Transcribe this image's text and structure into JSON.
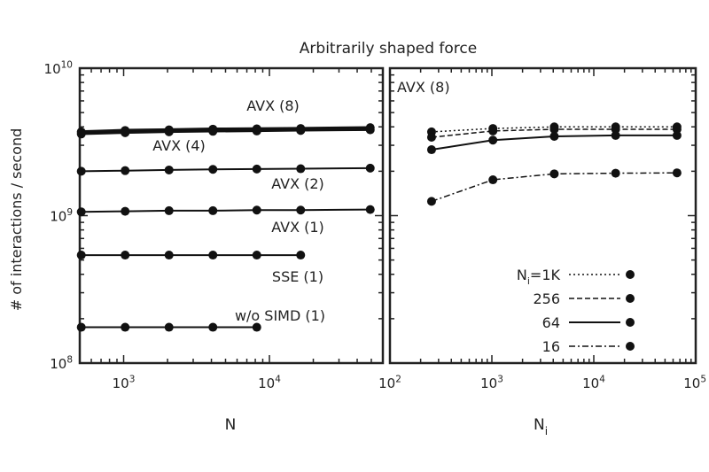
{
  "chart_data": [
    {
      "type": "line",
      "title": "Arbitrarily shaped force",
      "xlabel": "N",
      "ylabel": "# of interactions / second",
      "x_scale": "log",
      "y_scale": "log",
      "xlim": [
        500,
        60000
      ],
      "ylim": [
        100000000,
        10000000000
      ],
      "x_ticks": [
        {
          "value": 1000,
          "label_base": "10",
          "label_exp": "3"
        },
        {
          "value": 10000,
          "label_base": "10",
          "label_exp": "4"
        }
      ],
      "y_ticks": [
        {
          "value": 100000000,
          "label_base": "10",
          "label_exp": "8"
        },
        {
          "value": 1000000000,
          "label_base": "10",
          "label_exp": "9"
        },
        {
          "value": 10000000000,
          "label_base": "10",
          "label_exp": "10"
        }
      ],
      "series": [
        {
          "name": "AVX (8)",
          "x": [
            512,
            1024,
            2048,
            4096,
            8192,
            16384,
            49152
          ],
          "y": [
            3700000000,
            3780000000,
            3820000000,
            3860000000,
            3880000000,
            3900000000,
            3950000000
          ]
        },
        {
          "name": "AVX (4)",
          "x": [
            512,
            1024,
            2048,
            4096,
            8192,
            16384,
            49152
          ],
          "y": [
            3580000000,
            3650000000,
            3700000000,
            3730000000,
            3750000000,
            3780000000,
            3820000000
          ]
        },
        {
          "name": "AVX (2)",
          "x": [
            512,
            1024,
            2048,
            4096,
            8192,
            16384,
            49152
          ],
          "y": [
            2000000000,
            2020000000,
            2040000000,
            2060000000,
            2070000000,
            2080000000,
            2100000000
          ]
        },
        {
          "name": "AVX (1)",
          "x": [
            512,
            1024,
            2048,
            4096,
            8192,
            16384,
            49152
          ],
          "y": [
            1060000000,
            1070000000,
            1080000000,
            1080000000,
            1090000000,
            1090000000,
            1100000000
          ]
        },
        {
          "name": "SSE (1)",
          "x": [
            512,
            1024,
            2048,
            4096,
            8192,
            16384
          ],
          "y": [
            540000000,
            540000000,
            540000000,
            540000000,
            540000000,
            540000000
          ]
        },
        {
          "name": "w/o SIMD (1)",
          "x": [
            512,
            1024,
            2048,
            4096,
            8192
          ],
          "y": [
            175000000,
            175000000,
            175000000,
            175000000,
            175000000
          ]
        }
      ],
      "annotations": [
        {
          "text": "AVX (8)"
        },
        {
          "text": "AVX (4)"
        },
        {
          "text": "AVX (2)"
        },
        {
          "text": "AVX (1)"
        },
        {
          "text": "SSE (1)"
        },
        {
          "text": "w/o SIMD (1)"
        }
      ]
    },
    {
      "type": "line",
      "annotation": "AVX (8)",
      "xlabel_base": "N",
      "xlabel_sub": "i",
      "x_scale": "log",
      "y_scale": "log",
      "xlim": [
        100,
        100000
      ],
      "ylim": [
        100000000,
        10000000000
      ],
      "x_ticks": [
        {
          "value": 100,
          "label_base": "10",
          "label_exp": "2"
        },
        {
          "value": 1000,
          "label_base": "10",
          "label_exp": "3"
        },
        {
          "value": 10000,
          "label_base": "10",
          "label_exp": "4"
        },
        {
          "value": 100000,
          "label_base": "10",
          "label_exp": "5"
        }
      ],
      "legend_position": "bottom-right",
      "series": [
        {
          "name_base": "N",
          "name_sub": "i",
          "name_rest": "=1K",
          "dash": "dotted",
          "x": [
            256,
            1024,
            4096,
            16384,
            65536
          ],
          "y": [
            3700000000,
            3900000000,
            4000000000,
            4000000000,
            4000000000
          ]
        },
        {
          "name": "256",
          "dash": "dashed",
          "x": [
            256,
            1024,
            4096,
            16384,
            65536
          ],
          "y": [
            3400000000,
            3750000000,
            3850000000,
            3850000000,
            3850000000
          ]
        },
        {
          "name": "64",
          "dash": "solid",
          "x": [
            256,
            1024,
            4096,
            16384,
            65536
          ],
          "y": [
            2800000000,
            3250000000,
            3450000000,
            3500000000,
            3500000000
          ]
        },
        {
          "name": "16",
          "dash": "dash-dot",
          "x": [
            256,
            1024,
            4096,
            16384,
            65536
          ],
          "y": [
            1250000000,
            1750000000,
            1920000000,
            1940000000,
            1950000000
          ]
        }
      ]
    }
  ]
}
